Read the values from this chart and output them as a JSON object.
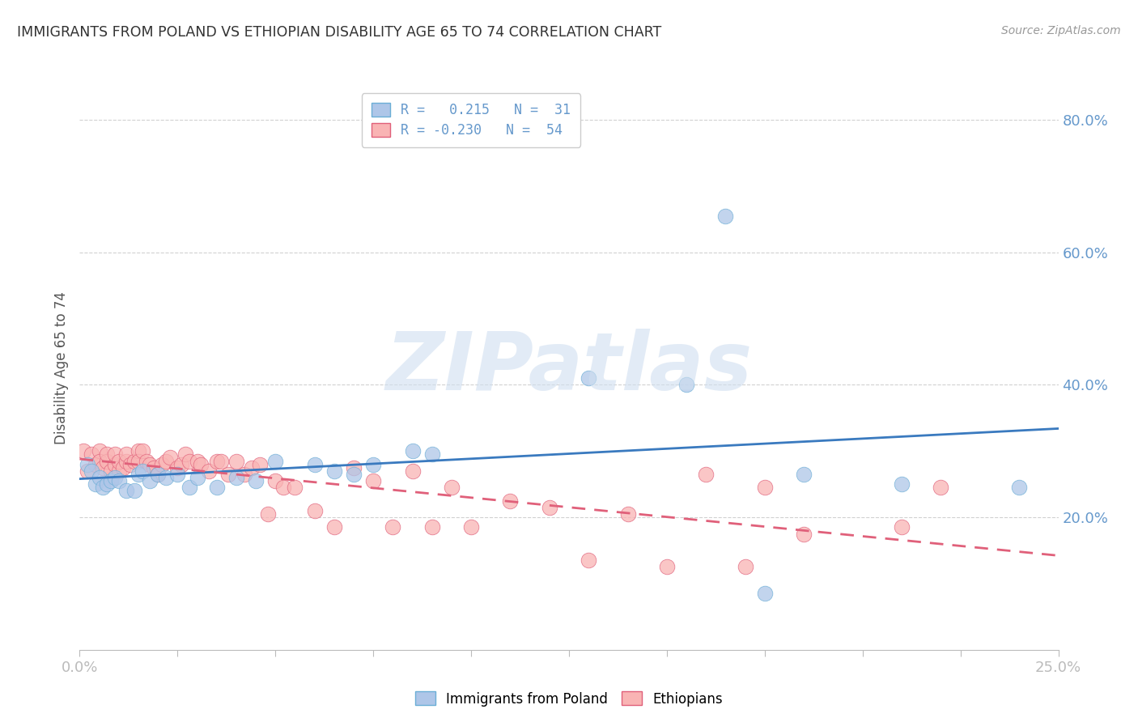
{
  "title": "IMMIGRANTS FROM POLAND VS ETHIOPIAN DISABILITY AGE 65 TO 74 CORRELATION CHART",
  "source": "Source: ZipAtlas.com",
  "ylabel": "Disability Age 65 to 74",
  "xlim": [
    0.0,
    0.25
  ],
  "ylim": [
    0.0,
    0.85
  ],
  "ytick_values": [
    0.2,
    0.4,
    0.6,
    0.8
  ],
  "ytick_labels": [
    "20.0%",
    "40.0%",
    "60.0%",
    "80.0%"
  ],
  "xtick_values": [
    0.0,
    0.025,
    0.05,
    0.075,
    0.1,
    0.125,
    0.15,
    0.175,
    0.2,
    0.225,
    0.25
  ],
  "blue_color": "#6baed6",
  "pink_color": "#fc8d8d",
  "blue_fill": "#aec6e8",
  "pink_fill": "#f9b4b4",
  "line_blue": "#3a7abf",
  "line_pink": "#e0607a",
  "poland_x": [
    0.002,
    0.003,
    0.004,
    0.005,
    0.006,
    0.007,
    0.008,
    0.009,
    0.01,
    0.012,
    0.014,
    0.015,
    0.016,
    0.018,
    0.02,
    0.022,
    0.025,
    0.028,
    0.03,
    0.035,
    0.04,
    0.045,
    0.05,
    0.06,
    0.065,
    0.07,
    0.075,
    0.085,
    0.09,
    0.13,
    0.155,
    0.165,
    0.175,
    0.185,
    0.21,
    0.24
  ],
  "poland_y": [
    0.28,
    0.27,
    0.25,
    0.26,
    0.245,
    0.25,
    0.255,
    0.26,
    0.255,
    0.24,
    0.24,
    0.265,
    0.27,
    0.255,
    0.265,
    0.26,
    0.265,
    0.245,
    0.26,
    0.245,
    0.26,
    0.255,
    0.285,
    0.28,
    0.27,
    0.265,
    0.28,
    0.3,
    0.295,
    0.41,
    0.4,
    0.655,
    0.085,
    0.265,
    0.25,
    0.245
  ],
  "ethiopia_x": [
    0.001,
    0.002,
    0.003,
    0.004,
    0.005,
    0.005,
    0.006,
    0.007,
    0.007,
    0.008,
    0.009,
    0.009,
    0.01,
    0.01,
    0.011,
    0.012,
    0.012,
    0.013,
    0.014,
    0.015,
    0.015,
    0.016,
    0.017,
    0.018,
    0.019,
    0.02,
    0.021,
    0.022,
    0.023,
    0.025,
    0.026,
    0.027,
    0.028,
    0.03,
    0.031,
    0.033,
    0.035,
    0.036,
    0.038,
    0.04,
    0.042,
    0.044,
    0.046,
    0.048,
    0.05,
    0.052,
    0.055,
    0.06,
    0.065,
    0.07,
    0.075,
    0.08,
    0.085,
    0.09,
    0.095,
    0.1,
    0.11,
    0.12,
    0.13,
    0.14,
    0.15,
    0.16,
    0.17,
    0.175,
    0.185,
    0.21,
    0.22
  ],
  "ethiopia_y": [
    0.3,
    0.27,
    0.295,
    0.28,
    0.3,
    0.285,
    0.275,
    0.285,
    0.295,
    0.27,
    0.28,
    0.295,
    0.27,
    0.285,
    0.275,
    0.285,
    0.295,
    0.28,
    0.285,
    0.3,
    0.285,
    0.3,
    0.285,
    0.28,
    0.275,
    0.265,
    0.28,
    0.285,
    0.29,
    0.275,
    0.28,
    0.295,
    0.285,
    0.285,
    0.28,
    0.27,
    0.285,
    0.285,
    0.265,
    0.285,
    0.265,
    0.275,
    0.28,
    0.205,
    0.255,
    0.245,
    0.245,
    0.21,
    0.185,
    0.275,
    0.255,
    0.185,
    0.27,
    0.185,
    0.245,
    0.185,
    0.225,
    0.215,
    0.135,
    0.205,
    0.125,
    0.265,
    0.125,
    0.245,
    0.175,
    0.185,
    0.245
  ],
  "background_color": "#ffffff",
  "grid_color": "#cccccc",
  "title_color": "#333333",
  "axis_color": "#6699cc",
  "watermark": "ZIPatlas",
  "watermark_color": "#d0dff0",
  "legend_R1": "R =   0.215",
  "legend_N1": "N =  31",
  "legend_R2": "R = -0.230",
  "legend_N2": "N =  54"
}
